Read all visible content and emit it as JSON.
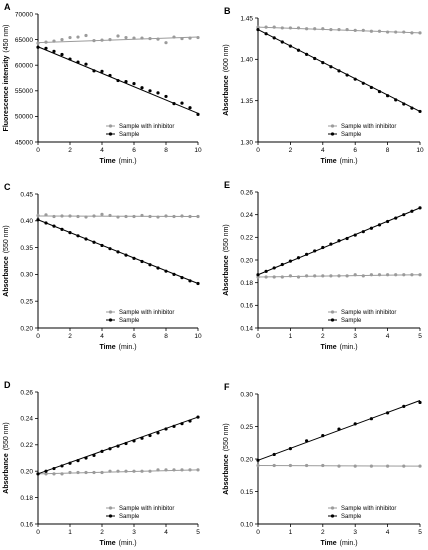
{
  "colors": {
    "inhibitor": "#9b9b9b",
    "sample": "#000000"
  },
  "chart_data": [
    {
      "type": "scatter",
      "panel_label": "A",
      "xlabel": "Time",
      "xlabel_unit": "(min.)",
      "ylabel": "Fluorescence intensity",
      "ylabel_unit": "(450 nm)",
      "xlim": [
        0,
        10
      ],
      "ylim": [
        45000,
        70000
      ],
      "xticks": [
        0,
        2,
        4,
        6,
        8,
        10
      ],
      "yticks": [
        45000,
        50000,
        55000,
        60000,
        65000,
        70000
      ],
      "legend_position": "bottom-right",
      "series": [
        {
          "name": "Sample with inhibitor",
          "x": [
            0,
            0.5,
            1,
            1.5,
            2,
            2.5,
            3,
            3.5,
            4,
            4.5,
            5,
            5.5,
            6,
            6.5,
            7,
            7.5,
            8,
            8.5,
            9,
            9.5,
            10
          ],
          "y": [
            64300,
            64500,
            64700,
            65000,
            65400,
            65500,
            65800,
            64800,
            64900,
            65000,
            65700,
            65400,
            65300,
            65300,
            65200,
            65100,
            64400,
            65500,
            65200,
            65300,
            65400
          ],
          "fit": [
            64400,
            65500
          ]
        },
        {
          "name": "Sample",
          "x": [
            0,
            0.5,
            1,
            1.5,
            2,
            2.5,
            3,
            3.5,
            4,
            4.5,
            5,
            5.5,
            6,
            6.5,
            7,
            7.5,
            8,
            8.5,
            9,
            9.5,
            10
          ],
          "y": [
            63500,
            63300,
            62700,
            62100,
            61200,
            60600,
            60200,
            58900,
            58800,
            58000,
            57000,
            56800,
            56400,
            55600,
            55000,
            54600,
            53900,
            52500,
            52600,
            51700,
            50400
          ],
          "fit": [
            63600,
            50600
          ]
        }
      ]
    },
    {
      "type": "scatter",
      "panel_label": "B",
      "xlabel": "Time",
      "xlabel_unit": "(min.)",
      "ylabel": "Absorbance",
      "ylabel_unit": "(600 nm)",
      "xlim": [
        0,
        10
      ],
      "ylim": [
        1.3,
        1.45
      ],
      "xticks": [
        0,
        2,
        4,
        6,
        8,
        10
      ],
      "yticks": [
        "1.30",
        "1.35",
        "1.40",
        "1.45"
      ],
      "legend_position": "bottom-right",
      "series": [
        {
          "name": "Sample with inhibitor",
          "x": [
            0,
            0.5,
            1,
            1.5,
            2,
            2.5,
            3,
            3.5,
            4,
            4.5,
            5,
            5.5,
            6,
            6.5,
            7,
            7.5,
            8,
            8.5,
            9,
            9.5,
            10
          ],
          "y": [
            1.439,
            1.439,
            1.439,
            1.438,
            1.438,
            1.438,
            1.437,
            1.437,
            1.437,
            1.436,
            1.436,
            1.436,
            1.435,
            1.435,
            1.434,
            1.434,
            1.433,
            1.433,
            1.433,
            1.432,
            1.432
          ],
          "fit": [
            1.439,
            1.432
          ]
        },
        {
          "name": "Sample",
          "x": [
            0,
            0.5,
            1,
            1.5,
            2,
            2.5,
            3,
            3.5,
            4,
            4.5,
            5,
            5.5,
            6,
            6.5,
            7,
            7.5,
            8,
            8.5,
            9,
            9.5,
            10
          ],
          "y": [
            1.436,
            1.431,
            1.426,
            1.421,
            1.416,
            1.411,
            1.406,
            1.401,
            1.396,
            1.391,
            1.386,
            1.381,
            1.376,
            1.371,
            1.366,
            1.361,
            1.356,
            1.351,
            1.346,
            1.341,
            1.337
          ],
          "fit": [
            1.436,
            1.337
          ]
        }
      ]
    },
    {
      "type": "scatter",
      "panel_label": "C",
      "xlabel": "Time",
      "xlabel_unit": "(min.)",
      "ylabel": "Absorbance",
      "ylabel_unit": "(550 nm)",
      "xlim": [
        0,
        10
      ],
      "ylim": [
        0.2,
        0.45
      ],
      "xticks": [
        0,
        2,
        4,
        6,
        8,
        10
      ],
      "yticks": [
        "0.20",
        "0.25",
        "0.30",
        "0.35",
        "0.40",
        "0.45"
      ],
      "legend_position": "bottom-right",
      "series": [
        {
          "name": "Sample with inhibitor",
          "x": [
            0,
            0.5,
            1,
            1.5,
            2,
            2.5,
            3,
            3.5,
            4,
            4.5,
            5,
            5.5,
            6,
            6.5,
            7,
            7.5,
            8,
            8.5,
            9,
            9.5,
            10
          ],
          "y": [
            0.41,
            0.411,
            0.408,
            0.409,
            0.409,
            0.408,
            0.407,
            0.409,
            0.412,
            0.41,
            0.407,
            0.408,
            0.408,
            0.41,
            0.408,
            0.407,
            0.409,
            0.408,
            0.409,
            0.408,
            0.408
          ],
          "fit": [
            0.409,
            0.408
          ]
        },
        {
          "name": "Sample",
          "x": [
            0,
            0.5,
            1,
            1.5,
            2,
            2.5,
            3,
            3.5,
            4,
            4.5,
            5,
            5.5,
            6,
            6.5,
            7,
            7.5,
            8,
            8.5,
            9,
            9.5,
            10
          ],
          "y": [
            0.402,
            0.396,
            0.39,
            0.384,
            0.378,
            0.372,
            0.366,
            0.36,
            0.354,
            0.348,
            0.342,
            0.336,
            0.33,
            0.324,
            0.318,
            0.312,
            0.306,
            0.3,
            0.294,
            0.288,
            0.283
          ],
          "fit": [
            0.402,
            0.283
          ]
        }
      ]
    },
    {
      "type": "scatter",
      "panel_label": "E",
      "xlabel": "Time",
      "xlabel_unit": "(min.)",
      "ylabel": "Absorbance",
      "ylabel_unit": "(550 nm)",
      "xlim": [
        0,
        5
      ],
      "ylim": [
        0.14,
        0.26
      ],
      "xticks": [
        0,
        1,
        2,
        3,
        4,
        5
      ],
      "yticks": [
        "0.14",
        "0.16",
        "0.18",
        "0.20",
        "0.22",
        "0.24",
        "0.26"
      ],
      "legend_position": "bottom-right",
      "series": [
        {
          "name": "Sample with inhibitor",
          "x": [
            0,
            0.25,
            0.5,
            0.75,
            1,
            1.25,
            1.5,
            1.75,
            2,
            2.25,
            2.5,
            2.75,
            3,
            3.25,
            3.5,
            3.75,
            4,
            4.25,
            4.5,
            4.75,
            5
          ],
          "y": [
            0.185,
            0.185,
            0.185,
            0.185,
            0.186,
            0.185,
            0.186,
            0.186,
            0.186,
            0.186,
            0.186,
            0.186,
            0.187,
            0.186,
            0.187,
            0.187,
            0.187,
            0.187,
            0.187,
            0.187,
            0.187
          ],
          "fit": [
            0.185,
            0.187
          ]
        },
        {
          "name": "Sample",
          "x": [
            0,
            0.25,
            0.5,
            0.75,
            1,
            1.25,
            1.5,
            1.75,
            2,
            2.25,
            2.5,
            2.75,
            3,
            3.25,
            3.5,
            3.75,
            4,
            4.25,
            4.5,
            4.75,
            5
          ],
          "y": [
            0.187,
            0.19,
            0.193,
            0.196,
            0.199,
            0.202,
            0.205,
            0.208,
            0.211,
            0.214,
            0.217,
            0.219,
            0.222,
            0.225,
            0.228,
            0.231,
            0.234,
            0.237,
            0.24,
            0.243,
            0.246
          ],
          "fit": [
            0.187,
            0.246
          ]
        }
      ]
    },
    {
      "type": "scatter",
      "panel_label": "D",
      "xlabel": "Time",
      "xlabel_unit": "(min.)",
      "ylabel": "Absorbance",
      "ylabel_unit": "(550 nm)",
      "xlim": [
        0,
        5
      ],
      "ylim": [
        0.16,
        0.26
      ],
      "xticks": [
        0,
        1,
        2,
        3,
        4,
        5
      ],
      "yticks": [
        "0.16",
        "0.18",
        "0.20",
        "0.22",
        "0.24",
        "0.26"
      ],
      "legend_position": "bottom-right",
      "series": [
        {
          "name": "Sample with inhibitor",
          "x": [
            0,
            0.25,
            0.5,
            0.75,
            1,
            1.25,
            1.5,
            1.75,
            2,
            2.25,
            2.5,
            2.75,
            3,
            3.25,
            3.5,
            3.75,
            4,
            4.25,
            4.5,
            4.75,
            5
          ],
          "y": [
            0.198,
            0.198,
            0.198,
            0.198,
            0.199,
            0.199,
            0.199,
            0.199,
            0.199,
            0.2,
            0.2,
            0.2,
            0.2,
            0.2,
            0.2,
            0.201,
            0.201,
            0.201,
            0.201,
            0.201,
            0.201
          ],
          "fit": [
            0.198,
            0.201
          ]
        },
        {
          "name": "Sample",
          "x": [
            0,
            0.25,
            0.5,
            0.75,
            1,
            1.25,
            1.5,
            1.75,
            2,
            2.25,
            2.5,
            2.75,
            3,
            3.25,
            3.5,
            3.75,
            4,
            4.25,
            4.5,
            4.75,
            5
          ],
          "y": [
            0.198,
            0.2,
            0.202,
            0.204,
            0.206,
            0.208,
            0.21,
            0.212,
            0.215,
            0.217,
            0.219,
            0.221,
            0.223,
            0.225,
            0.227,
            0.229,
            0.232,
            0.234,
            0.236,
            0.238,
            0.241
          ],
          "fit": [
            0.198,
            0.241
          ]
        }
      ]
    },
    {
      "type": "scatter",
      "panel_label": "F",
      "xlabel": "Time",
      "xlabel_unit": "(min.)",
      "ylabel": "Absorbance",
      "ylabel_unit": "(550 nm)",
      "xlim": [
        0,
        5
      ],
      "ylim": [
        0.1,
        0.3
      ],
      "xticks": [
        0,
        1,
        2,
        3,
        4,
        5
      ],
      "yticks": [
        "0.10",
        "0.15",
        "0.20",
        "0.25",
        "0.30"
      ],
      "legend_position": "bottom-right",
      "series": [
        {
          "name": "Sample with inhibitor",
          "x": [
            0,
            0.5,
            1,
            1.5,
            2,
            2.5,
            3,
            3.5,
            4,
            4.5,
            5
          ],
          "y": [
            0.19,
            0.19,
            0.19,
            0.19,
            0.19,
            0.189,
            0.189,
            0.189,
            0.189,
            0.189,
            0.189
          ],
          "fit": [
            0.19,
            0.189
          ]
        },
        {
          "name": "Sample",
          "x": [
            0,
            0.5,
            1,
            1.5,
            2,
            2.5,
            3,
            3.5,
            4,
            4.5,
            5
          ],
          "y": [
            0.198,
            0.207,
            0.216,
            0.228,
            0.236,
            0.246,
            0.254,
            0.262,
            0.271,
            0.281,
            0.287
          ],
          "fit": [
            0.198,
            0.29
          ]
        }
      ]
    }
  ]
}
